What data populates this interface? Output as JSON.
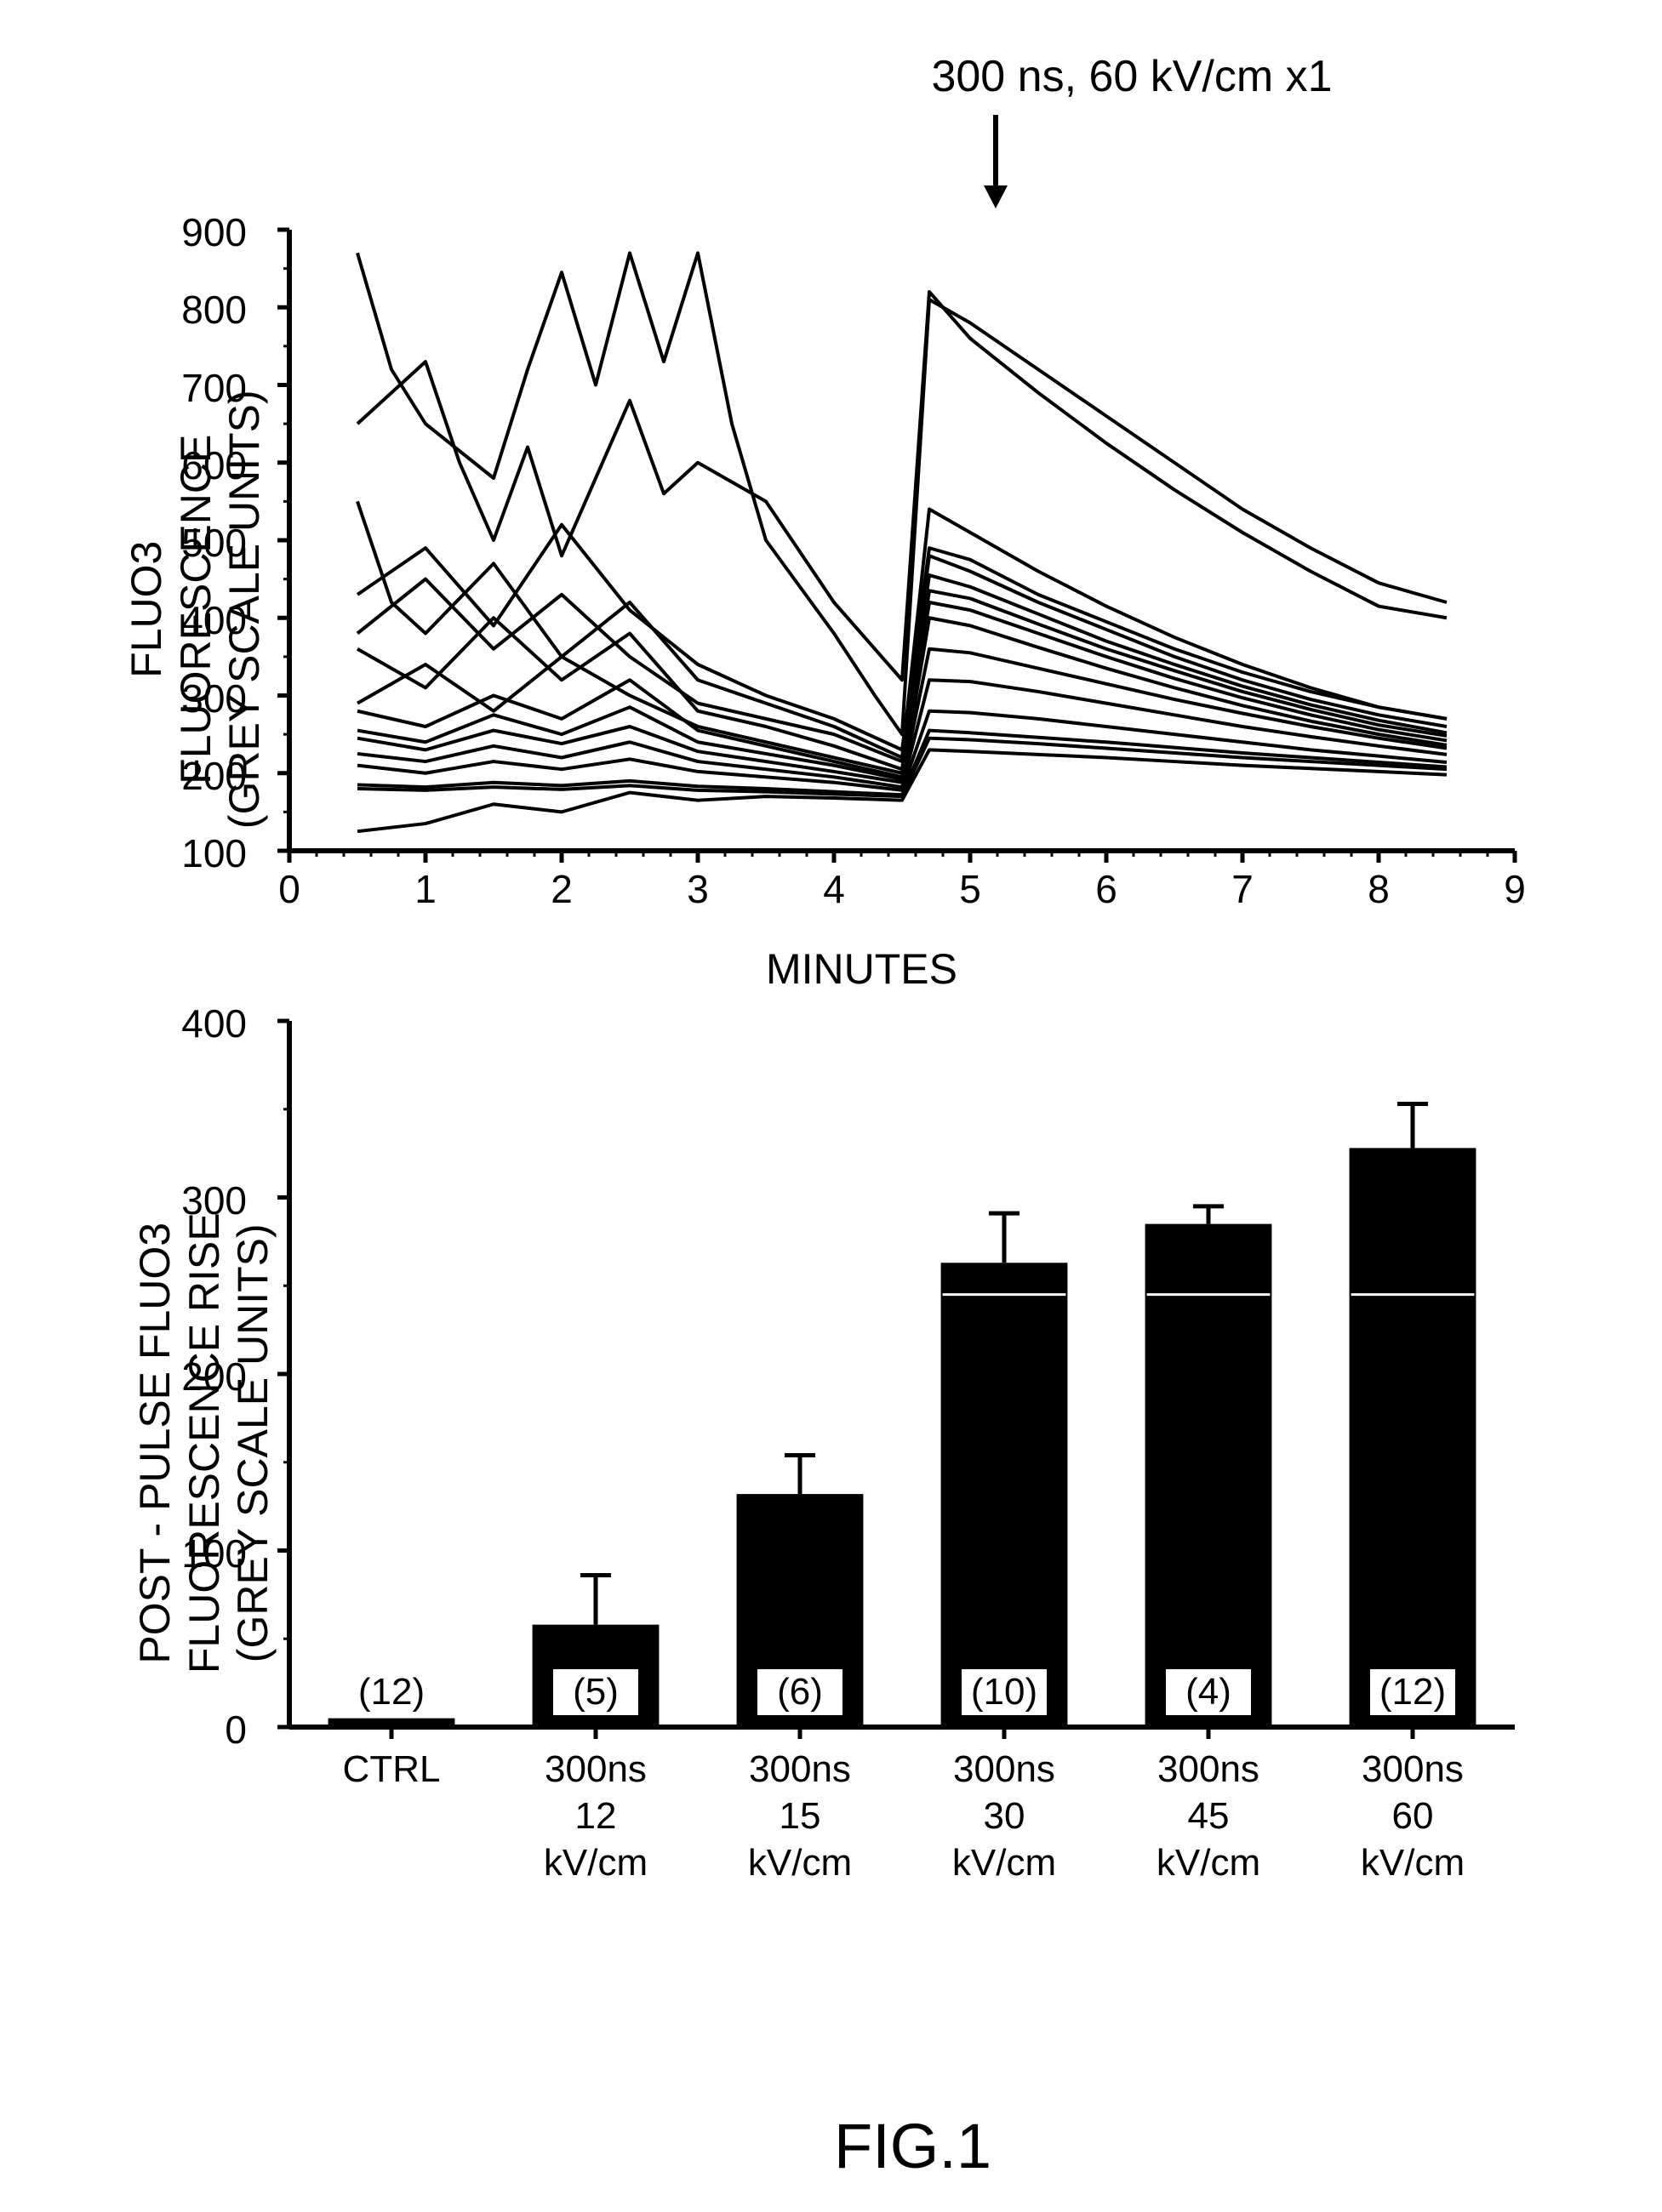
{
  "figure_label": "FIG.1",
  "top_annotation": "300 ns, 60 kV/cm x1",
  "line_chart": {
    "type": "line",
    "ylabel_line1": "FLUO3 FLUORESCENCE",
    "ylabel_line2": "(GREY SCALE UNITS)",
    "xlabel": "MINUTES",
    "xlim": [
      0,
      9
    ],
    "ylim": [
      100,
      900
    ],
    "xticks": [
      0,
      1,
      2,
      3,
      4,
      5,
      6,
      7,
      8,
      9
    ],
    "yticks": [
      100,
      200,
      300,
      400,
      500,
      600,
      700,
      800,
      900
    ],
    "axis_color": "#000000",
    "line_color": "#000000",
    "line_width": 4,
    "background": "#ffffff",
    "stimulus_x": 4.7,
    "series": [
      {
        "pts": [
          [
            0.5,
            870
          ],
          [
            0.75,
            720
          ],
          [
            1,
            650
          ],
          [
            1.5,
            580
          ],
          [
            1.75,
            720
          ],
          [
            2,
            845
          ],
          [
            2.25,
            700
          ],
          [
            2.5,
            870
          ],
          [
            2.75,
            730
          ],
          [
            3,
            870
          ],
          [
            3.25,
            650
          ],
          [
            3.5,
            500
          ],
          [
            4,
            380
          ],
          [
            4.3,
            300
          ],
          [
            4.5,
            250
          ],
          [
            4.7,
            810
          ],
          [
            5,
            780
          ],
          [
            5.5,
            720
          ],
          [
            6,
            660
          ],
          [
            6.5,
            600
          ],
          [
            7,
            540
          ],
          [
            7.5,
            490
          ],
          [
            8,
            445
          ],
          [
            8.5,
            420
          ]
        ]
      },
      {
        "pts": [
          [
            0.5,
            650
          ],
          [
            1,
            730
          ],
          [
            1.25,
            600
          ],
          [
            1.5,
            500
          ],
          [
            1.75,
            620
          ],
          [
            2,
            480
          ],
          [
            2.5,
            680
          ],
          [
            2.75,
            560
          ],
          [
            3,
            600
          ],
          [
            3.5,
            550
          ],
          [
            4,
            420
          ],
          [
            4.5,
            320
          ],
          [
            4.7,
            820
          ],
          [
            5,
            760
          ],
          [
            5.5,
            690
          ],
          [
            6,
            625
          ],
          [
            6.5,
            565
          ],
          [
            7,
            510
          ],
          [
            7.5,
            460
          ],
          [
            8,
            415
          ],
          [
            8.5,
            400
          ]
        ]
      },
      {
        "pts": [
          [
            0.5,
            550
          ],
          [
            0.75,
            420
          ],
          [
            1,
            380
          ],
          [
            1.5,
            470
          ],
          [
            2,
            350
          ],
          [
            2.5,
            420
          ],
          [
            3,
            320
          ],
          [
            3.5,
            290
          ],
          [
            4,
            260
          ],
          [
            4.5,
            220
          ],
          [
            4.7,
            540
          ],
          [
            5,
            510
          ],
          [
            5.5,
            460
          ],
          [
            6,
            415
          ],
          [
            6.5,
            375
          ],
          [
            7,
            340
          ],
          [
            7.5,
            310
          ],
          [
            8,
            285
          ],
          [
            8.5,
            270
          ]
        ]
      },
      {
        "pts": [
          [
            0.5,
            430
          ],
          [
            1,
            490
          ],
          [
            1.5,
            390
          ],
          [
            2,
            520
          ],
          [
            2.5,
            410
          ],
          [
            3,
            340
          ],
          [
            3.5,
            300
          ],
          [
            4,
            270
          ],
          [
            4.5,
            230
          ],
          [
            4.7,
            490
          ],
          [
            5,
            475
          ],
          [
            5.5,
            430
          ],
          [
            6,
            395
          ],
          [
            6.5,
            360
          ],
          [
            7,
            330
          ],
          [
            7.5,
            305
          ],
          [
            8,
            285
          ],
          [
            8.5,
            270
          ]
        ]
      },
      {
        "pts": [
          [
            0.5,
            380
          ],
          [
            1,
            450
          ],
          [
            1.5,
            360
          ],
          [
            2,
            430
          ],
          [
            2.5,
            350
          ],
          [
            3,
            290
          ],
          [
            3.5,
            270
          ],
          [
            4,
            250
          ],
          [
            4.5,
            215
          ],
          [
            4.7,
            480
          ],
          [
            5,
            460
          ],
          [
            5.5,
            420
          ],
          [
            6,
            385
          ],
          [
            6.5,
            350
          ],
          [
            7,
            320
          ],
          [
            7.5,
            295
          ],
          [
            8,
            275
          ],
          [
            8.5,
            260
          ]
        ]
      },
      {
        "pts": [
          [
            0.5,
            360
          ],
          [
            1,
            310
          ],
          [
            1.5,
            400
          ],
          [
            2,
            320
          ],
          [
            2.5,
            380
          ],
          [
            3,
            280
          ],
          [
            3.5,
            260
          ],
          [
            4,
            235
          ],
          [
            4.5,
            205
          ],
          [
            4.7,
            455
          ],
          [
            5,
            440
          ],
          [
            5.5,
            405
          ],
          [
            6,
            370
          ],
          [
            6.5,
            340
          ],
          [
            7,
            312
          ],
          [
            7.5,
            288
          ],
          [
            8,
            268
          ],
          [
            8.5,
            252
          ]
        ]
      },
      {
        "pts": [
          [
            0.5,
            290
          ],
          [
            1,
            340
          ],
          [
            1.5,
            280
          ],
          [
            2,
            350
          ],
          [
            2.5,
            300
          ],
          [
            3,
            260
          ],
          [
            3.5,
            240
          ],
          [
            4,
            220
          ],
          [
            4.5,
            200
          ],
          [
            4.7,
            435
          ],
          [
            5,
            425
          ],
          [
            5.5,
            392
          ],
          [
            6,
            360
          ],
          [
            6.5,
            332
          ],
          [
            7,
            305
          ],
          [
            7.5,
            282
          ],
          [
            8,
            262
          ],
          [
            8.5,
            248
          ]
        ]
      },
      {
        "pts": [
          [
            0.5,
            280
          ],
          [
            1,
            260
          ],
          [
            1.5,
            300
          ],
          [
            2,
            270
          ],
          [
            2.5,
            320
          ],
          [
            3,
            255
          ],
          [
            3.5,
            235
          ],
          [
            4,
            215
          ],
          [
            4.5,
            195
          ],
          [
            4.7,
            420
          ],
          [
            5,
            410
          ],
          [
            5.5,
            380
          ],
          [
            6,
            350
          ],
          [
            6.5,
            322
          ],
          [
            7,
            297
          ],
          [
            7.5,
            275
          ],
          [
            8,
            256
          ],
          [
            8.5,
            242
          ]
        ]
      },
      {
        "pts": [
          [
            0.5,
            255
          ],
          [
            1,
            240
          ],
          [
            1.5,
            275
          ],
          [
            2,
            250
          ],
          [
            2.5,
            285
          ],
          [
            3,
            240
          ],
          [
            3.5,
            225
          ],
          [
            4,
            210
          ],
          [
            4.5,
            192
          ],
          [
            4.7,
            400
          ],
          [
            5,
            390
          ],
          [
            5.5,
            362
          ],
          [
            6,
            335
          ],
          [
            6.5,
            310
          ],
          [
            7,
            287
          ],
          [
            7.5,
            267
          ],
          [
            8,
            250
          ],
          [
            8.5,
            236
          ]
        ]
      },
      {
        "pts": [
          [
            0.5,
            245
          ],
          [
            1,
            230
          ],
          [
            1.5,
            255
          ],
          [
            2,
            238
          ],
          [
            2.5,
            260
          ],
          [
            3,
            228
          ],
          [
            3.5,
            215
          ],
          [
            4,
            202
          ],
          [
            4.5,
            188
          ],
          [
            4.7,
            360
          ],
          [
            5,
            355
          ],
          [
            5.5,
            335
          ],
          [
            6,
            315
          ],
          [
            6.5,
            295
          ],
          [
            7,
            277
          ],
          [
            7.5,
            260
          ],
          [
            8,
            245
          ],
          [
            8.5,
            232
          ]
        ]
      },
      {
        "pts": [
          [
            0.5,
            225
          ],
          [
            1,
            215
          ],
          [
            1.5,
            235
          ],
          [
            2,
            220
          ],
          [
            2.5,
            240
          ],
          [
            3,
            215
          ],
          [
            3.5,
            205
          ],
          [
            4,
            195
          ],
          [
            4.5,
            182
          ],
          [
            4.7,
            320
          ],
          [
            5,
            318
          ],
          [
            5.5,
            305
          ],
          [
            6,
            290
          ],
          [
            6.5,
            275
          ],
          [
            7,
            260
          ],
          [
            7.5,
            247
          ],
          [
            8,
            235
          ],
          [
            8.5,
            224
          ]
        ]
      },
      {
        "pts": [
          [
            0.5,
            210
          ],
          [
            1,
            200
          ],
          [
            1.5,
            215
          ],
          [
            2,
            205
          ],
          [
            2.5,
            218
          ],
          [
            3,
            202
          ],
          [
            3.5,
            195
          ],
          [
            4,
            188
          ],
          [
            4.5,
            178
          ],
          [
            4.7,
            280
          ],
          [
            5,
            278
          ],
          [
            5.5,
            270
          ],
          [
            6,
            260
          ],
          [
            6.5,
            250
          ],
          [
            7,
            240
          ],
          [
            7.5,
            230
          ],
          [
            8,
            222
          ],
          [
            8.5,
            214
          ]
        ]
      },
      {
        "pts": [
          [
            0.5,
            185
          ],
          [
            1,
            182
          ],
          [
            1.5,
            188
          ],
          [
            2,
            184
          ],
          [
            2.5,
            190
          ],
          [
            3,
            183
          ],
          [
            3.5,
            180
          ],
          [
            4,
            176
          ],
          [
            4.5,
            172
          ],
          [
            4.7,
            255
          ],
          [
            5,
            252
          ],
          [
            5.5,
            246
          ],
          [
            6,
            240
          ],
          [
            6.5,
            233
          ],
          [
            7,
            226
          ],
          [
            7.5,
            220
          ],
          [
            8,
            214
          ],
          [
            8.5,
            208
          ]
        ]
      },
      {
        "pts": [
          [
            0.5,
            180
          ],
          [
            1,
            178
          ],
          [
            1.5,
            182
          ],
          [
            2,
            179
          ],
          [
            2.5,
            184
          ],
          [
            3,
            178
          ],
          [
            3.5,
            176
          ],
          [
            4,
            173
          ],
          [
            4.5,
            170
          ],
          [
            4.7,
            245
          ],
          [
            5,
            243
          ],
          [
            5.5,
            238
          ],
          [
            6,
            232
          ],
          [
            6.5,
            226
          ],
          [
            7,
            220
          ],
          [
            7.5,
            215
          ],
          [
            8,
            210
          ],
          [
            8.5,
            205
          ]
        ]
      },
      {
        "pts": [
          [
            0.5,
            125
          ],
          [
            1,
            135
          ],
          [
            1.5,
            160
          ],
          [
            2,
            150
          ],
          [
            2.5,
            175
          ],
          [
            3,
            165
          ],
          [
            3.5,
            170
          ],
          [
            4,
            168
          ],
          [
            4.5,
            165
          ],
          [
            4.7,
            230
          ],
          [
            5,
            228
          ],
          [
            5.5,
            224
          ],
          [
            6,
            220
          ],
          [
            6.5,
            215
          ],
          [
            7,
            210
          ],
          [
            7.5,
            206
          ],
          [
            8,
            202
          ],
          [
            8.5,
            198
          ]
        ]
      }
    ]
  },
  "bar_chart": {
    "type": "bar",
    "ylabel_line1": "POST - PULSE FLUO3 FLUORESCENCE RISE",
    "ylabel_line2": "(GREY SCALE UNITS)",
    "ylim": [
      0,
      400
    ],
    "yticks": [
      0,
      100,
      200,
      300,
      400
    ],
    "axis_color": "#000000",
    "bar_color": "#000000",
    "background": "#ffffff",
    "bar_width": 0.62,
    "categories": [
      "CTRL",
      "300ns\n12\nkV/cm",
      "300ns\n15\nkV/cm",
      "300ns\n30\nkV/cm",
      "300ns\n45\nkV/cm",
      "300ns\n60\nkV/cm"
    ],
    "values": [
      5,
      58,
      132,
      263,
      285,
      328
    ],
    "errors": [
      0,
      28,
      22,
      28,
      10,
      25
    ],
    "n_labels": [
      "(12)",
      "(5)",
      "(6)",
      "(10)",
      "(4)",
      "(12)"
    ],
    "white_split_bars": [
      3,
      4,
      5
    ]
  }
}
